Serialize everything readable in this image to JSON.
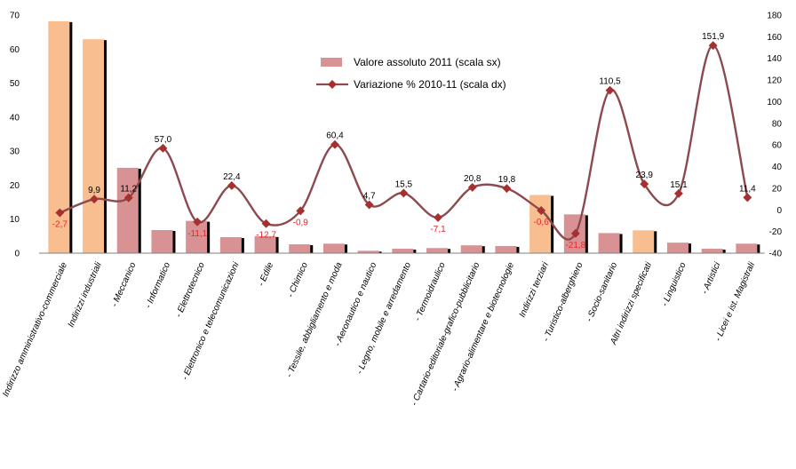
{
  "chart_data": {
    "type": "bar",
    "title": "",
    "xlabel": "",
    "ylabel": "",
    "ylim": [
      0,
      70
    ],
    "y2lim": [
      -40,
      180
    ],
    "y_ticks": [
      "0",
      "10",
      "20",
      "30",
      "40",
      "50",
      "60",
      "70"
    ],
    "y2_ticks": [
      "-40",
      "-20",
      "0",
      "20",
      "40",
      "60",
      "80",
      "100",
      "120",
      "140",
      "160",
      "180"
    ],
    "grid": false,
    "legend_position": "top-center",
    "categories": [
      "Indirizzo amministrativo-commerciale",
      "Indirizzi industriali",
      "- Meccanico",
      "- Informatico",
      "- Elettrotecnico",
      "- Elettronico e telecomunicazioni",
      "- Edile",
      "- Chimico",
      "- Tessile, abbigliamento e moda",
      "- Aeronautico e nautico",
      "- Legno, mobile e arredamento",
      "- Termoidraulico",
      "- Cartario-editoriale-grafico-pubblicitario",
      "- Agrario-alimentare e biotecnologie",
      "Indirizzi terziari",
      "- Turistico-alberghiero",
      "- Socio-sanitario",
      "Altri indirizzi specificati",
      "- Linguistico",
      "- Artistici",
      "- Licei e ist. Magistrali"
    ],
    "highlighted": [
      true,
      true,
      false,
      false,
      false,
      false,
      false,
      false,
      false,
      false,
      false,
      false,
      false,
      false,
      true,
      false,
      false,
      true,
      false,
      false,
      false
    ],
    "series": [
      {
        "name": "Valore assoluto 2011 (scala sx)",
        "type": "bar",
        "axis": "left",
        "values": [
          68.2,
          62.9,
          25.1,
          6.8,
          9.5,
          4.7,
          5.0,
          2.6,
          2.8,
          0.7,
          1.3,
          1.5,
          2.3,
          2.1,
          17.1,
          11.4,
          5.9,
          6.7,
          3.1,
          1.3,
          2.8
        ]
      },
      {
        "name": "Variazione % 2010-11 (scala dx)",
        "type": "line",
        "axis": "right",
        "values": [
          -2.7,
          9.9,
          11.2,
          57.0,
          -11.1,
          22.4,
          -12.7,
          -0.9,
          60.4,
          4.7,
          15.5,
          -7.1,
          20.8,
          19.8,
          -0.6,
          -21.8,
          110.5,
          23.9,
          15.1,
          151.9,
          11.4
        ],
        "labels": [
          "-2,7",
          "9,9",
          "11,2",
          "57,0",
          "-11,1",
          "22,4",
          "-12,7",
          "-0,9",
          "60,4",
          "4,7",
          "15,5",
          "-7,1",
          "20,8",
          "19,8",
          "-0,6",
          "-21,8",
          "110,5",
          "23,9",
          "15,1",
          "151,9",
          "11,4"
        ]
      }
    ],
    "colors": {
      "bar_normal": "#d99294",
      "bar_highlight": "#f9be8f",
      "bar_shadow": "#000000",
      "line": "#8c4a4f",
      "marker": "#a5302e",
      "label_negative": "#e8262b"
    }
  }
}
